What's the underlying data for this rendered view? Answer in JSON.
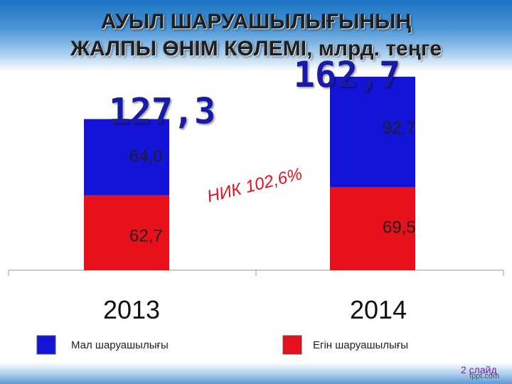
{
  "title_line1": "АУЫЛ ШАРУАШЫЛЫҒЫНЫҢ",
  "title_line2": "ЖАЛПЫ ӨНІМ КӨЛЕМІ, млрд. теңге",
  "chart_data": {
    "type": "bar",
    "stacked": true,
    "categories": [
      "2013",
      "2014"
    ],
    "series": [
      {
        "name": "Егін шаруашылығы",
        "values": [
          62.7,
          69.5
        ],
        "labels": [
          "62,7",
          "69,5"
        ],
        "color": "#e8101b"
      },
      {
        "name": "Мал шаруашылығы",
        "values": [
          64.0,
          92.7
        ],
        "labels": [
          "64,0",
          "92,7"
        ],
        "color": "#1414d8"
      }
    ],
    "totals": [
      127.3,
      162.7
    ],
    "total_labels": [
      "127,3",
      "162,7"
    ],
    "growth_annotation": "НИК 102,6%",
    "ylim": [
      0,
      180
    ],
    "legend": [
      {
        "label": "Мал шаруашылығы",
        "color": "#1414d8"
      },
      {
        "label": "Егін шаруашылығы",
        "color": "#e8101b"
      }
    ]
  },
  "page_number": "2 слайд",
  "watermark": "fppt.com"
}
